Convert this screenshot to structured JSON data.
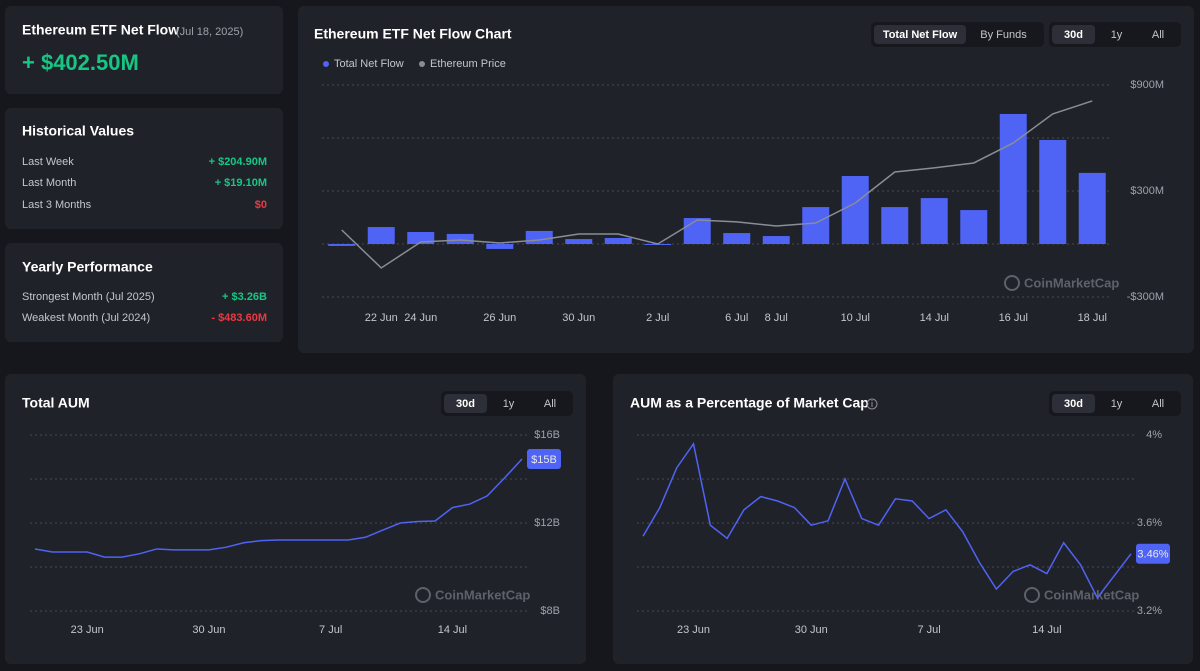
{
  "summary": {
    "title": "Ethereum ETF Net Flow",
    "date": "(Jul 18, 2025)",
    "value": "+ $402.50M",
    "color": "#16c784"
  },
  "historical": {
    "title": "Historical Values",
    "rows": [
      {
        "label": "Last Week",
        "value": "+ $204.90M",
        "color": "#16c784"
      },
      {
        "label": "Last Month",
        "value": "+ $19.10M",
        "color": "#16c784"
      },
      {
        "label": "Last 3 Months",
        "value": "$0",
        "color": "#ea3943"
      }
    ]
  },
  "yearly": {
    "title": "Yearly Performance",
    "rows": [
      {
        "label": "Strongest Month (Jul 2025)",
        "value": "+ $3.26B",
        "color": "#16c784"
      },
      {
        "label": "Weakest Month (Jul 2024)",
        "value": "- $483.60M",
        "color": "#ea3943"
      }
    ]
  },
  "chart_data": [
    {
      "type": "bar",
      "title": "Ethereum ETF Net Flow Chart",
      "toggle": [
        "Total Net Flow",
        "By Funds"
      ],
      "ranges": [
        "30d",
        "1y",
        "All"
      ],
      "categories": [
        null,
        "22 Jun",
        "24 Jun",
        null,
        "26 Jun",
        null,
        "30 Jun",
        null,
        "2 Jul",
        null,
        "6 Jul",
        "8 Jul",
        null,
        "10 Jul",
        null,
        "14 Jul",
        null,
        "16 Jul",
        null,
        "18 Jul"
      ],
      "series": [
        {
          "name": "Total Net Flow",
          "color": "#4f63f4",
          "values": [
            -11,
            96,
            68,
            57,
            -28,
            74,
            28,
            34,
            0,
            147,
            62,
            45,
            209,
            385,
            209,
            260,
            192,
            736,
            589,
            402.5
          ]
        },
        {
          "name": "Ethereum Price",
          "color": "#8a8d95",
          "type": "line",
          "axis": "y2",
          "values": [
            2400,
            2047,
            2288,
            2307,
            2279,
            2307,
            2363,
            2363,
            2270,
            2493,
            2475,
            2437,
            2465,
            2651,
            2939,
            2977,
            3023,
            3209,
            3479,
            3600
          ]
        }
      ],
      "ylim": [
        -300,
        900
      ],
      "yticks": [
        {
          "value": -300,
          "label": "-$300M"
        },
        {
          "value": 0,
          "label": null
        },
        {
          "value": 300,
          "label": "$300M"
        },
        {
          "value": 600,
          "label": null
        },
        {
          "value": 900,
          "label": "$900M"
        }
      ],
      "y2lim": [
        1777,
        3748
      ],
      "grid": true,
      "watermark": "CoinMarketCap"
    },
    {
      "type": "line",
      "title": "Total AUM",
      "ranges": [
        "30d",
        "1y",
        "All"
      ],
      "color": "#4f63f4",
      "categories": [
        null,
        null,
        null,
        "23 Jun",
        null,
        null,
        null,
        null,
        null,
        null,
        "30 Jun",
        null,
        null,
        null,
        null,
        null,
        null,
        "7 Jul",
        null,
        null,
        null,
        null,
        null,
        null,
        "14 Jul",
        null,
        null,
        null,
        null
      ],
      "values": [
        10.82,
        10.68,
        10.68,
        10.68,
        10.45,
        10.45,
        10.6,
        10.82,
        10.78,
        10.78,
        10.78,
        10.9,
        11.1,
        11.2,
        11.23,
        11.23,
        11.23,
        11.23,
        11.23,
        11.35,
        11.68,
        12.0,
        12.07,
        12.09,
        12.7,
        12.86,
        13.23,
        14.05,
        14.91
      ],
      "value_labels": [
        null,
        null,
        null,
        null,
        null,
        null,
        null,
        null,
        null,
        null,
        null,
        null,
        null,
        null,
        null,
        null,
        null,
        null,
        null,
        null,
        null,
        null,
        null,
        null,
        null,
        null,
        null,
        null,
        "$15B"
      ],
      "ylim": [
        8,
        16
      ],
      "yticks": [
        {
          "value": 8,
          "label": "$8B"
        },
        {
          "value": 10,
          "label": null
        },
        {
          "value": 12,
          "label": "$12B"
        },
        {
          "value": 14,
          "label": null
        },
        {
          "value": 16,
          "label": "$16B"
        }
      ],
      "grid": true,
      "watermark": "CoinMarketCap"
    },
    {
      "type": "line",
      "title": "AUM as a Percentage of Market Cap",
      "ranges": [
        "30d",
        "1y",
        "All"
      ],
      "color": "#4f63f4",
      "categories": [
        null,
        null,
        null,
        "23 Jun",
        null,
        null,
        null,
        null,
        null,
        null,
        "30 Jun",
        null,
        null,
        null,
        null,
        null,
        null,
        "7 Jul",
        null,
        null,
        null,
        null,
        null,
        null,
        "14 Jul",
        null,
        null,
        null,
        null,
        null
      ],
      "values": [
        3.54,
        3.67,
        3.85,
        3.96,
        3.59,
        3.53,
        3.66,
        3.72,
        3.7,
        3.67,
        3.59,
        3.61,
        3.8,
        3.62,
        3.59,
        3.71,
        3.7,
        3.62,
        3.66,
        3.56,
        3.42,
        3.3,
        3.38,
        3.41,
        3.37,
        3.51,
        3.41,
        3.26,
        3.36,
        3.46
      ],
      "value_labels": [
        null,
        null,
        null,
        null,
        null,
        null,
        null,
        null,
        null,
        null,
        null,
        null,
        null,
        null,
        null,
        null,
        null,
        null,
        null,
        null,
        null,
        null,
        null,
        null,
        null,
        null,
        null,
        null,
        null,
        "3.46%"
      ],
      "ylim": [
        3.2,
        4.0
      ],
      "yticks": [
        {
          "value": 3.2,
          "label": "3.2%"
        },
        {
          "value": 3.4,
          "label": null
        },
        {
          "value": 3.6,
          "label": "3.6%"
        },
        {
          "value": 3.8,
          "label": null
        },
        {
          "value": 4,
          "label": "4%"
        }
      ],
      "grid": true,
      "watermark": "CoinMarketCap"
    }
  ]
}
